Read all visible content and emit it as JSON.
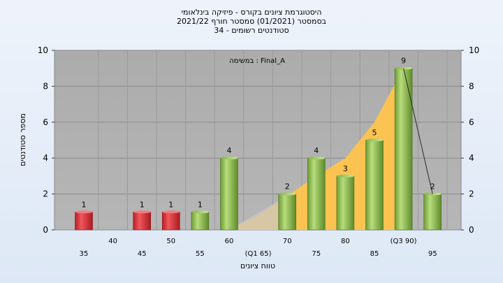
{
  "title_lines": [
    "היסטוגרמת ציונים בקורס - פיזיקה בינלאומי",
    "בסמסטר  (01/2021)  סמסטר חורף 2021/22",
    "סטודנטים רשומים - 34"
  ],
  "task_label": "במשימה : Final_A",
  "chart_data": {
    "type": "bar",
    "categories": [
      "35",
      "40",
      "45",
      "50",
      "55",
      "60",
      "65",
      "70",
      "75",
      "80",
      "85",
      "90",
      "95"
    ],
    "x_tick_labels": [
      "35",
      "40",
      "45",
      "50",
      "55",
      "60",
      "(Q1 65)",
      "70",
      "75",
      "80",
      "85",
      "(Q3 90)",
      "95"
    ],
    "values": [
      1,
      0,
      1,
      1,
      1,
      4,
      0,
      2,
      4,
      3,
      5,
      9,
      2
    ],
    "value_labels": [
      "1",
      "",
      "1",
      "1",
      "1",
      "4",
      "",
      "2",
      "4",
      "3",
      "5",
      "9",
      "2"
    ],
    "bar_colors": [
      "#e0343a",
      null,
      "#e0343a",
      "#e0343a",
      "#9ac55a",
      "#9ac55a",
      null,
      "#9ac55a",
      "#9ac55a",
      "#9ac55a",
      "#9ac55a",
      "#9ac55a",
      "#9ac55a"
    ],
    "ylim": [
      0,
      10
    ],
    "y_ticks": [
      0,
      2,
      4,
      6,
      8,
      10
    ],
    "xlabel": "טווח ציונים",
    "ylabel": "מספר סטודנטים",
    "grid": true,
    "background_area": {
      "x": [
        "60",
        "65",
        "70",
        "75",
        "80",
        "85",
        "90"
      ],
      "values": [
        0,
        0.8,
        1.9,
        3.0,
        4.0,
        6.0,
        9.0
      ],
      "color": "#ffc44c"
    },
    "tail_line": {
      "x": [
        "90",
        "95"
      ],
      "values": [
        9,
        2
      ]
    }
  }
}
